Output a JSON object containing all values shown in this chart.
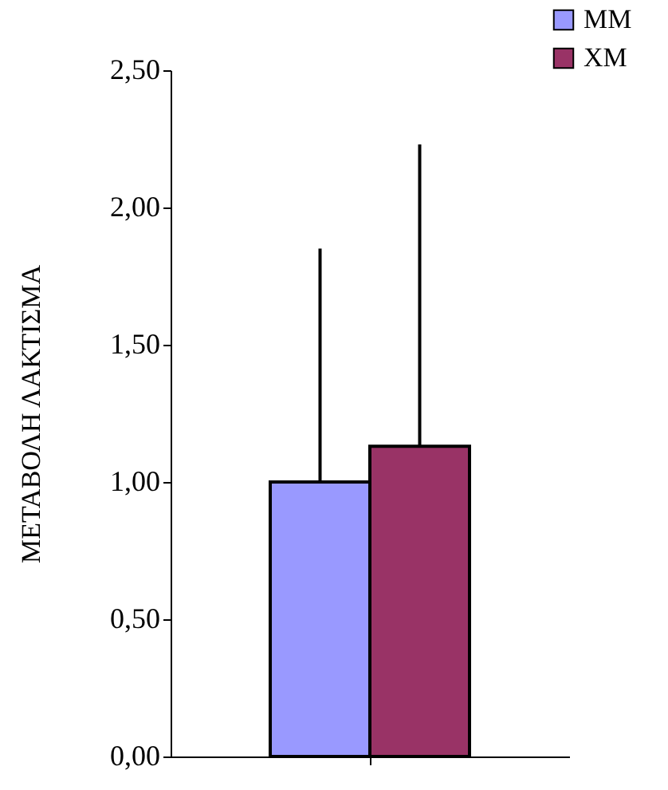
{
  "chart_data": {
    "type": "bar",
    "ylabel": "ΜΕΤΑΒΟΛΗ  ΛΑΚΤΙΣΜΑ",
    "categories": [
      null
    ],
    "series": [
      {
        "name": "MM",
        "color": "#9999ff",
        "values": [
          1.0
        ],
        "errors": [
          [
            1.0,
            1.85
          ]
        ]
      },
      {
        "name": "XM",
        "color": "#993366",
        "values": [
          1.13
        ],
        "errors": [
          [
            1.13,
            2.23
          ]
        ]
      }
    ],
    "ylim": [
      0,
      2.5
    ],
    "yticks": [
      {
        "value": 0,
        "label": "0,00"
      },
      {
        "value": 0.5,
        "label": "0,50"
      },
      {
        "value": 1,
        "label": "1,00"
      },
      {
        "value": 1.5,
        "label": "1,50"
      },
      {
        "value": 2,
        "label": "2,00"
      },
      {
        "value": 2.5,
        "label": "2,50"
      }
    ],
    "grid": false,
    "legend": "top right"
  }
}
